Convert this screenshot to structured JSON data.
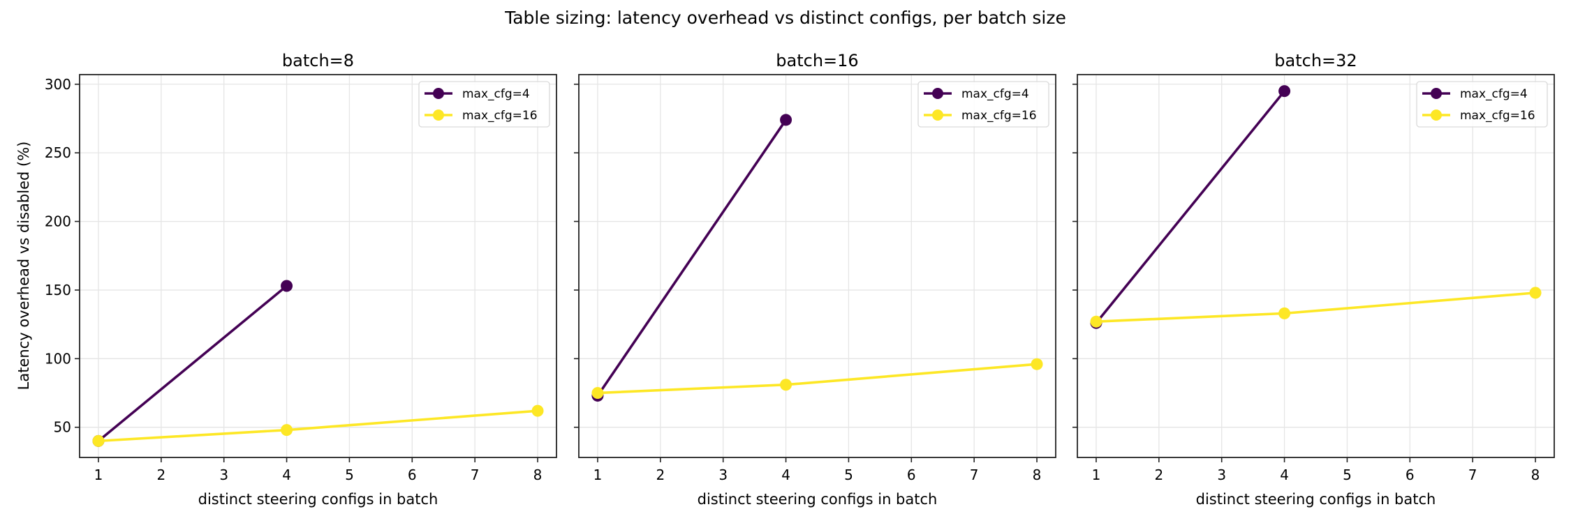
{
  "chart_data": {
    "type": "line",
    "title": "Table sizing: latency overhead vs distinct configs, per batch size",
    "ylabel": "Latency overhead vs disabled (%)",
    "sharey": true,
    "grid": true,
    "legend_placement": "top-right",
    "panels": [
      {
        "title": "batch=8",
        "xlabel": "distinct steering configs in batch",
        "xlim": [
          0.7,
          8.3
        ],
        "ylim": [
          28,
          307
        ],
        "xticks": [
          "1",
          "2",
          "3",
          "4",
          "5",
          "6",
          "7",
          "8"
        ],
        "yticks": [
          "50",
          "100",
          "150",
          "200",
          "250",
          "300"
        ],
        "series": [
          {
            "name": "max_cfg=4",
            "color": "#440154",
            "x": [
              1,
              4
            ],
            "values": [
              40,
              153
            ]
          },
          {
            "name": "max_cfg=16",
            "color": "#fde725",
            "x": [
              1,
              4,
              8
            ],
            "values": [
              40,
              48,
              62
            ]
          }
        ]
      },
      {
        "title": "batch=16",
        "xlabel": "distinct steering configs in batch",
        "xlim": [
          0.7,
          8.3
        ],
        "ylim": [
          28,
          307
        ],
        "xticks": [
          "1",
          "2",
          "3",
          "4",
          "5",
          "6",
          "7",
          "8"
        ],
        "yticks": [],
        "series": [
          {
            "name": "max_cfg=4",
            "color": "#440154",
            "x": [
              1,
              4
            ],
            "values": [
              73,
              274
            ]
          },
          {
            "name": "max_cfg=16",
            "color": "#fde725",
            "x": [
              1,
              4,
              8
            ],
            "values": [
              75,
              81,
              96
            ]
          }
        ]
      },
      {
        "title": "batch=32",
        "xlabel": "distinct steering configs in batch",
        "xlim": [
          0.7,
          8.3
        ],
        "ylim": [
          28,
          307
        ],
        "xticks": [
          "1",
          "2",
          "3",
          "4",
          "5",
          "6",
          "7",
          "8"
        ],
        "yticks": [],
        "series": [
          {
            "name": "max_cfg=4",
            "color": "#440154",
            "x": [
              1,
              4
            ],
            "values": [
              126,
              295
            ]
          },
          {
            "name": "max_cfg=16",
            "color": "#fde725",
            "x": [
              1,
              4,
              8
            ],
            "values": [
              127,
              133,
              148
            ]
          }
        ]
      }
    ],
    "ytick_values": [
      50,
      100,
      150,
      200,
      250,
      300
    ],
    "xtick_values": [
      1,
      2,
      3,
      4,
      5,
      6,
      7,
      8
    ]
  }
}
